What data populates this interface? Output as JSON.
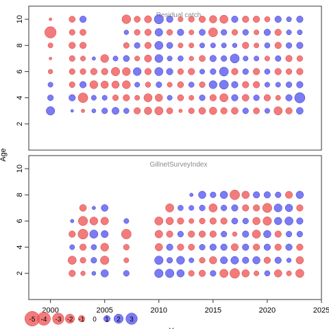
{
  "chart_data": {
    "type": "scatter",
    "subtype": "bubble-residual-plot",
    "y_axis_label": "Age",
    "x_axis_label": "Y",
    "colors": {
      "positive": "#5a5af0",
      "negative": "#f05a5a"
    },
    "x_ticks": [
      2000,
      2005,
      2010,
      2015,
      2020,
      2025
    ],
    "legend": {
      "entries": [
        {
          "label": "-5",
          "value": -5
        },
        {
          "label": "-4",
          "value": -4
        },
        {
          "label": "-3",
          "value": -3
        },
        {
          "label": "-2",
          "value": -2
        },
        {
          "label": "-1",
          "value": -1
        },
        {
          "label": "0",
          "value": 0
        },
        {
          "label": "1",
          "value": 1
        },
        {
          "label": "2",
          "value": 2
        },
        {
          "label": "3",
          "value": 3
        }
      ]
    },
    "panels": [
      {
        "title": "Residual catch",
        "xlim": [
          1998,
          2025
        ],
        "ylim": [
          0,
          11
        ],
        "y_ticks": [
          2,
          4,
          6,
          8,
          10
        ],
        "years": [
          2000,
          2002,
          2003,
          2004,
          2005,
          2006,
          2007,
          2008,
          2009,
          2010,
          2011,
          2012,
          2013,
          2014,
          2015,
          2016,
          2017,
          2018,
          2019,
          2020,
          2021,
          2022,
          2023
        ],
        "ages": [
          3,
          4,
          5,
          6,
          7,
          8,
          9,
          10
        ],
        "residuals": {
          "2000": [
            1.7,
            0.8,
            0.6,
            -0.5,
            -0.2,
            -0.6,
            -3.0,
            -0.2
          ],
          "2002": [
            0.2,
            1.0,
            -0.8,
            -0.8,
            -0.8,
            -1.0,
            -0.8,
            -0.9
          ],
          "2003": [
            -0.3,
            -2.2,
            1.0,
            -0.8,
            -0.6,
            -1.0,
            -0.9,
            1.0
          ],
          "2004": [
            0.4,
            0.6,
            -1.5,
            -1.0,
            0.3,
            0,
            0,
            0
          ],
          "2005": [
            0.8,
            0.6,
            -1.3,
            -1.0,
            -1.5,
            0,
            0,
            0
          ],
          "2006": [
            1.2,
            -0.8,
            -1.3,
            -1.7,
            0.6,
            0,
            0,
            0
          ],
          "2007": [
            0.7,
            -1.0,
            -1.5,
            -1.5,
            0.9,
            -0.8,
            0.5,
            -1.8
          ],
          "2008": [
            -1.0,
            -0.6,
            0.6,
            1.5,
            -0.6,
            0.8,
            -0.8,
            -0.9
          ],
          "2009": [
            -1.3,
            -1.6,
            -0.7,
            -1.0,
            -1.2,
            -1.0,
            -1.0,
            -1.2
          ],
          "2010": [
            -1.6,
            -1.3,
            0.8,
            1.6,
            1.5,
            1.6,
            1.4,
            2.0
          ],
          "2011": [
            -0.9,
            0.6,
            -0.6,
            1.0,
            0.6,
            0.9,
            -0.8,
            1.0
          ],
          "2012": [
            -0.3,
            -0.9,
            -0.9,
            -0.8,
            0.7,
            -0.6,
            1.0,
            -0.6
          ],
          "2013": [
            -0.8,
            -0.6,
            0.7,
            -1.0,
            -0.5,
            -0.6,
            -0.6,
            -0.8
          ],
          "2014": [
            -1.1,
            0.8,
            -0.8,
            0.6,
            -0.9,
            0.6,
            0.9,
            -1.0
          ],
          "2015": [
            -1.3,
            -1.0,
            1.5,
            0.8,
            1.0,
            0.6,
            -1.9,
            -1.3
          ],
          "2016": [
            -1.0,
            -1.6,
            1.9,
            1.9,
            0.8,
            0.6,
            0.8,
            -1.6
          ],
          "2017": [
            -1.1,
            1.0,
            1.0,
            -1.0,
            1.9,
            0.5,
            -0.8,
            1.0
          ],
          "2018": [
            0.8,
            -1.1,
            -1.0,
            0.8,
            0.6,
            -1.0,
            0.8,
            -1.0
          ],
          "2019": [
            -0.9,
            0.8,
            -1.0,
            -1.0,
            0.6,
            -0.6,
            -0.6,
            -1.0
          ],
          "2020": [
            0.6,
            -1.0,
            0.6,
            0.7,
            -0.6,
            0.7,
            1.0,
            -0.7
          ],
          "2021": [
            -1.6,
            -0.6,
            0.6,
            -1.0,
            0.8,
            -1.0,
            -1.0,
            1.0
          ],
          "2022": [
            -1.0,
            1.0,
            0.8,
            -0.8,
            -1.0,
            0.8,
            0.6,
            0.6
          ],
          "2023": [
            1.1,
            2.5,
            1.0,
            -1.0,
            -0.8,
            1.0,
            0.6,
            1.0
          ]
        }
      },
      {
        "title": "GillnetSurveyIndex",
        "xlim": [
          1998,
          2025
        ],
        "ylim": [
          0,
          11
        ],
        "y_ticks": [
          2,
          4,
          6,
          8,
          10
        ],
        "years": [
          2002,
          2003,
          2004,
          2005,
          2007,
          2010,
          2011,
          2012,
          2013,
          2014,
          2015,
          2016,
          2017,
          2018,
          2019,
          2020,
          2021,
          2022,
          2023
        ],
        "ages": [
          2,
          3,
          4,
          5,
          6,
          7,
          8
        ],
        "residuals": {
          "2002": [
            -1.0,
            -1.6,
            0.6,
            -1.0,
            0.3,
            0,
            0
          ],
          "2003": [
            -0.5,
            -0.8,
            -1.0,
            -2.3,
            -2.0,
            -1.1,
            0
          ],
          "2004": [
            0.4,
            0.8,
            0.7,
            1.6,
            -1.5,
            0.3,
            0
          ],
          "2005": [
            1.3,
            -1.7,
            -1.5,
            1.2,
            -1.4,
            1.1,
            0
          ],
          "2007": [
            0.8,
            -0.6,
            -0.8,
            -2.2,
            0.6,
            0,
            0
          ],
          "2010": [
            1.7,
            1.7,
            -1.3,
            -1.4,
            -1.6,
            0,
            0
          ],
          "2011": [
            1.7,
            0.8,
            1.0,
            -1.0,
            -1.3,
            -1.6,
            0
          ],
          "2012": [
            1.3,
            1.5,
            -1.0,
            0.8,
            -1.0,
            0.7,
            0
          ],
          "2013": [
            -0.8,
            0.6,
            -0.9,
            -1.0,
            -0.6,
            0.6,
            0.3
          ],
          "2014": [
            -1.0,
            -0.8,
            0.8,
            -1.0,
            -0.8,
            0.8,
            1.3
          ],
          "2015": [
            0.8,
            -1.3,
            1.0,
            -1.0,
            -1.0,
            -1.6,
            0.8
          ],
          "2016": [
            -1.6,
            1.2,
            1.0,
            0.8,
            -1.0,
            0.8,
            1.3
          ],
          "2017": [
            -2.2,
            1.4,
            -1.2,
            -0.5,
            0.9,
            1.0,
            -2.2
          ],
          "2018": [
            -1.3,
            1.0,
            1.0,
            1.0,
            0.8,
            -1.0,
            -1.3
          ],
          "2019": [
            -0.6,
            1.3,
            -1.0,
            -1.6,
            -1.3,
            -1.0,
            1.0
          ],
          "2020": [
            0.7,
            -1.0,
            1.0,
            1.3,
            -1.7,
            -2.0,
            1.0
          ],
          "2021": [
            -1.3,
            1.0,
            -1.0,
            -1.0,
            1.3,
            1.5,
            0.8
          ],
          "2022": [
            -0.6,
            0.5,
            1.0,
            0.8,
            1.6,
            1.3,
            -1.2
          ],
          "2023": [
            -1.6,
            -1.3,
            -1.0,
            0.8,
            1.0,
            -1.0,
            1.3
          ]
        }
      }
    ]
  }
}
